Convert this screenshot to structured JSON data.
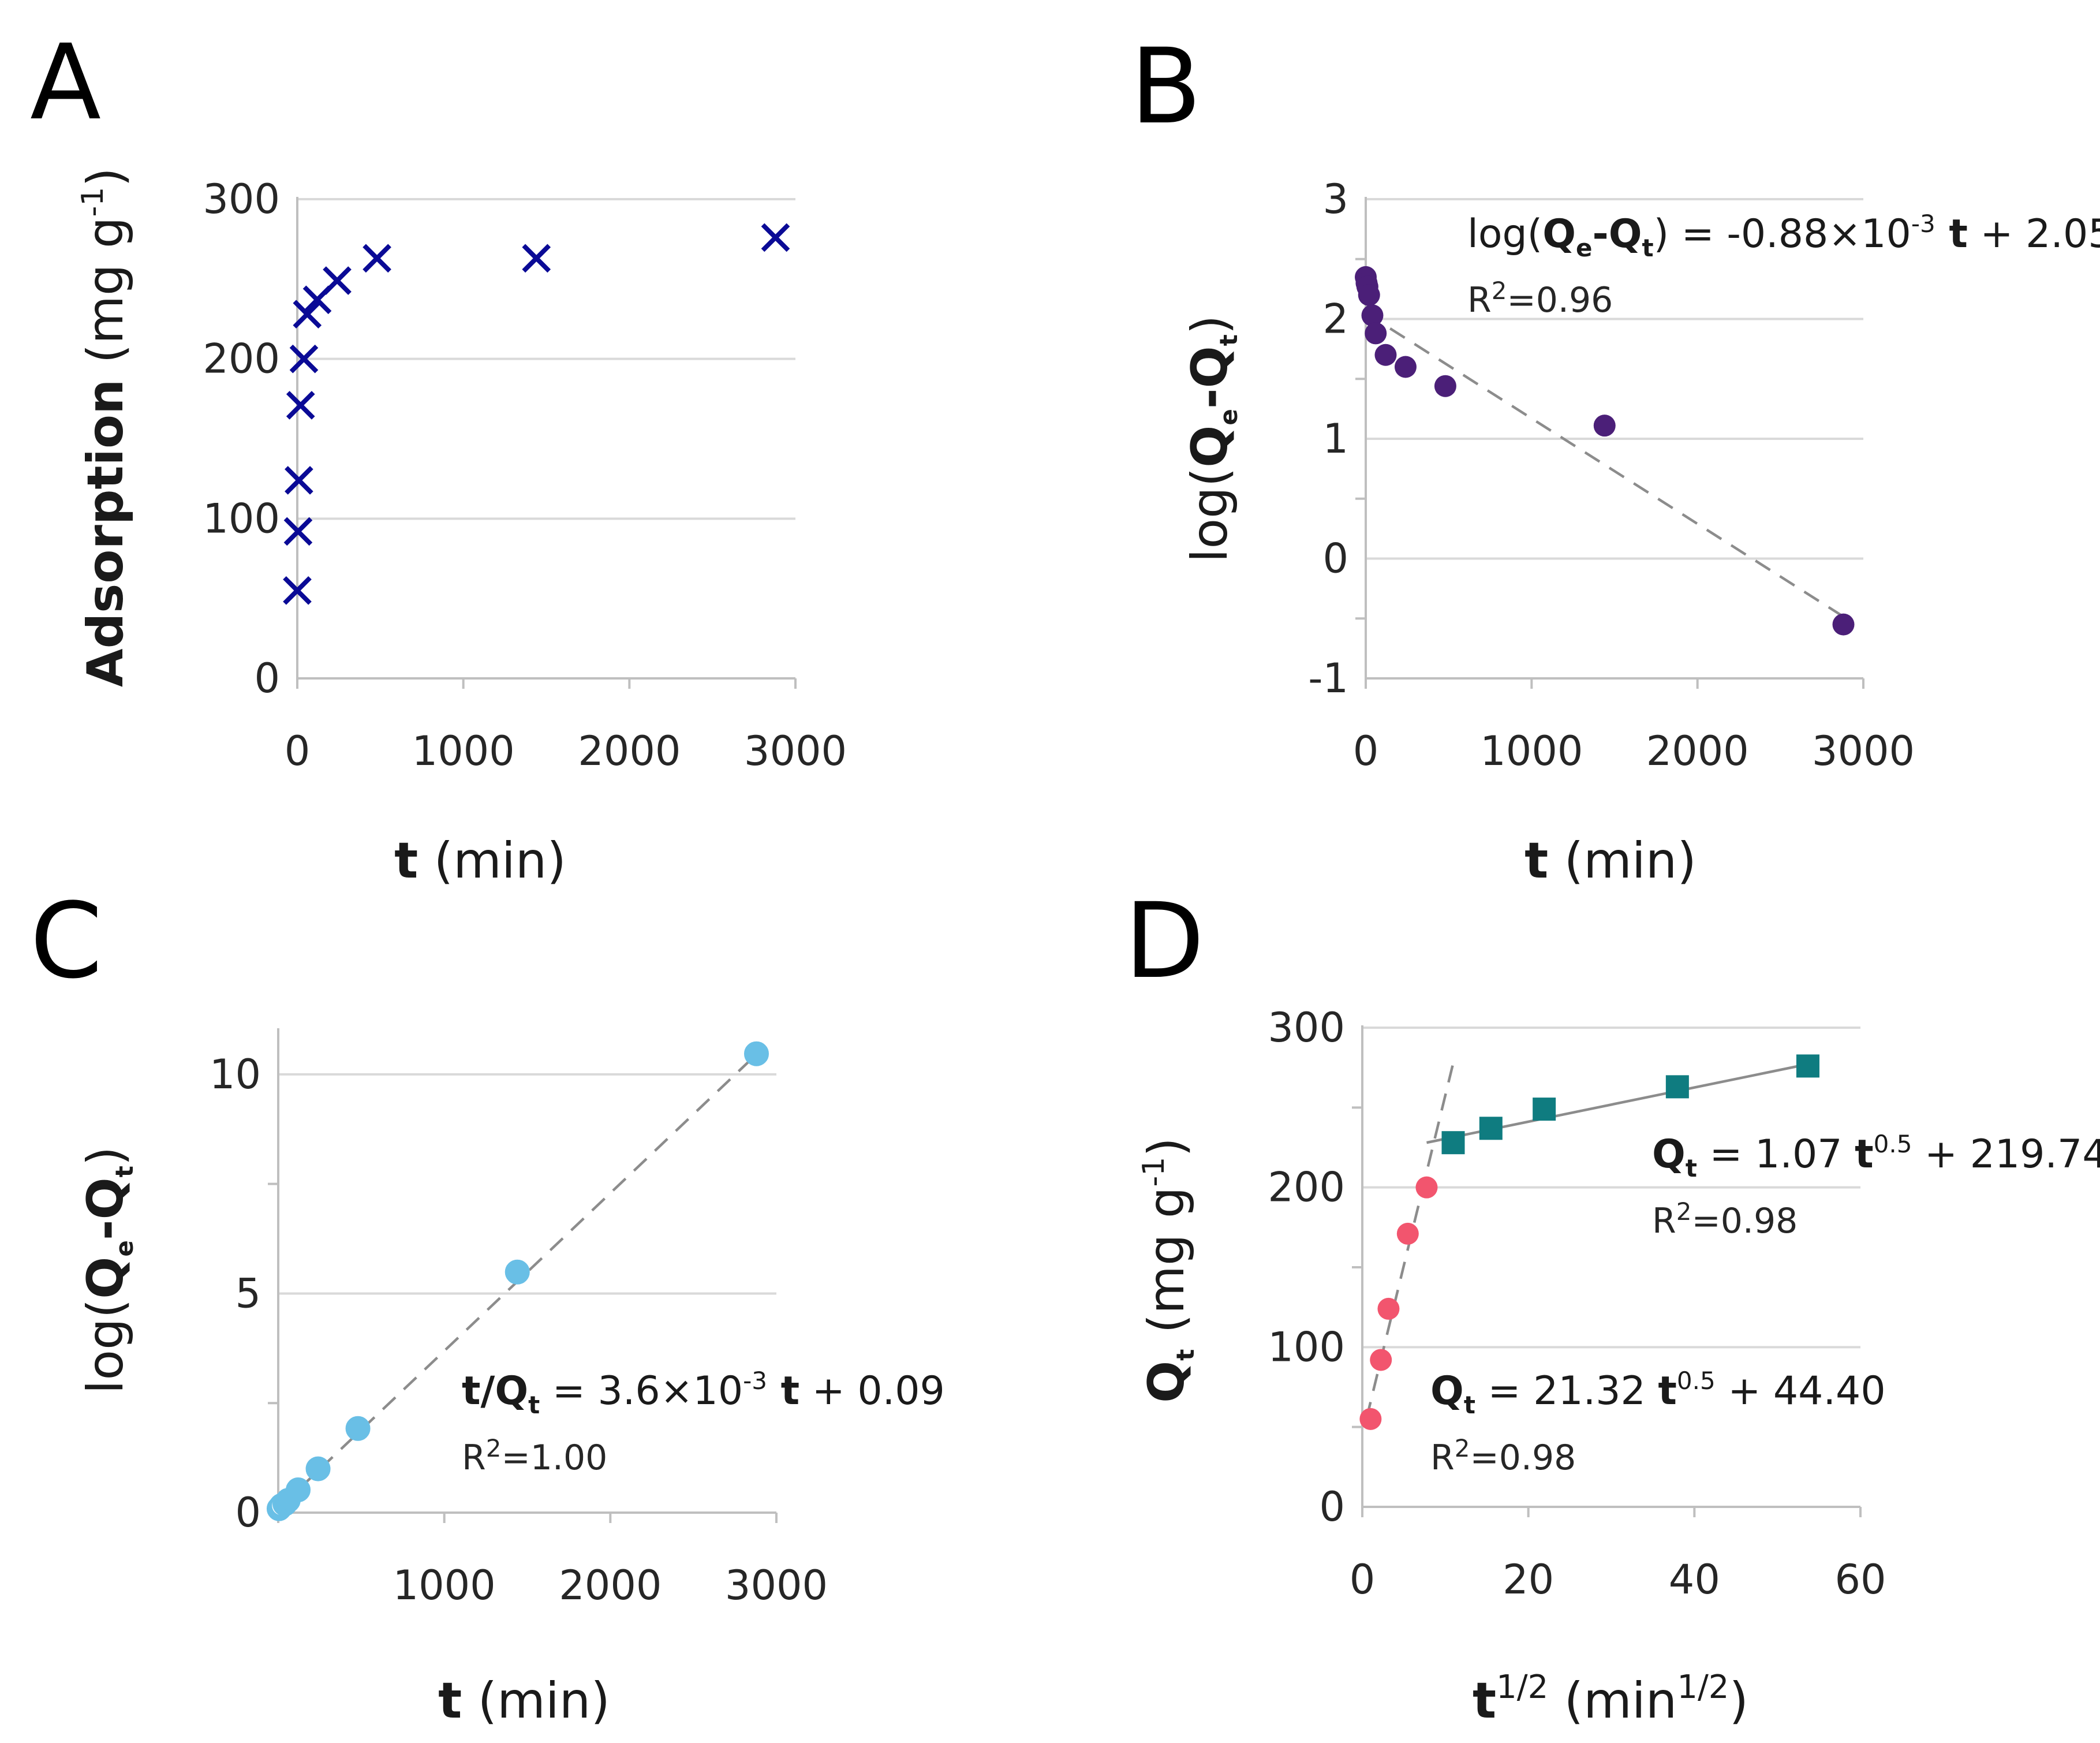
{
  "colors": {
    "A_marker": "#0a0a96",
    "B_marker": "#4b1f78",
    "C_marker": "#69bfe6",
    "D_circle": "#f2556e",
    "D_square": "#0f7c80",
    "grid": "#d9d9d9",
    "fit": "#8c8c8c"
  },
  "chart_data": [
    {
      "id": "A",
      "panel_label": "A",
      "type": "scatter",
      "marker": "x",
      "xlabel_bold": "t",
      "xlabel_rest": " (min)",
      "ylabel_bold": "Adsorption",
      "ylabel_rest": " (mg g",
      "ylabel_sup": "-1",
      "ylabel_end": ")",
      "xlim": [
        0,
        3000
      ],
      "ylim": [
        0,
        300
      ],
      "xticks": [
        0,
        1000,
        2000,
        3000
      ],
      "yticks": [
        0,
        100,
        200,
        300
      ],
      "x": [
        0,
        5,
        10,
        20,
        40,
        60,
        120,
        240,
        480,
        1440,
        2880
      ],
      "y": [
        55,
        92,
        124,
        171,
        200,
        228,
        237,
        249,
        263,
        263,
        276
      ]
    },
    {
      "id": "B",
      "panel_label": "B",
      "type": "scatter",
      "marker": "circle",
      "xlabel_bold": "t",
      "xlabel_rest": " (min)",
      "ylabel": "log(Qe-Qt)",
      "xlim": [
        0,
        3000
      ],
      "ylim": [
        -1,
        3
      ],
      "xticks": [
        0,
        1000,
        2000,
        3000
      ],
      "yticks": [
        -1,
        0,
        1,
        2,
        3
      ],
      "x": [
        0,
        5,
        10,
        20,
        40,
        60,
        120,
        240,
        480,
        1440,
        2880
      ],
      "y": [
        2.35,
        2.3,
        2.27,
        2.2,
        2.03,
        1.88,
        1.7,
        1.6,
        1.44,
        1.11,
        -0.55
      ],
      "fit": {
        "slope": -0.00088,
        "intercept": 2.05,
        "x_range": [
          0,
          2880
        ]
      },
      "equation": "log(Qe-Qt) = -0.88×10-3 t + 2.05",
      "r2": "R2=0.96"
    },
    {
      "id": "C",
      "panel_label": "C",
      "type": "scatter",
      "marker": "circle",
      "xlabel_bold": "t",
      "xlabel_rest": " (min)",
      "ylabel": "log(Qe-Qt)",
      "xlim": [
        0,
        3000
      ],
      "ylim": [
        0,
        11
      ],
      "xticks": [
        1000,
        2000,
        3000
      ],
      "yticks": [
        0,
        5,
        10
      ],
      "x": [
        5,
        10,
        20,
        40,
        60,
        120,
        240,
        480,
        1440,
        2880
      ],
      "y": [
        0.09,
        0.11,
        0.16,
        0.2,
        0.28,
        0.52,
        1.0,
        1.92,
        5.49,
        10.47
      ],
      "fit": {
        "slope": 0.0036,
        "intercept": 0.09,
        "x_range": [
          0,
          2880
        ]
      },
      "equation": "t/Qt = 3.6×10-3 t + 0.09",
      "r2": "R2=1.00"
    },
    {
      "id": "D",
      "panel_label": "D",
      "type": "scatter",
      "marker": "mixed",
      "xlabel_bold": "t",
      "xlabel_sup": "1/2",
      "xlabel_rest": " (min",
      "xlabel_sup2": "1/2",
      "xlabel_end": ")",
      "ylabel": "Qt (mg g-1)",
      "xlim": [
        0,
        60
      ],
      "ylim": [
        0,
        300
      ],
      "xticks": [
        0,
        20,
        40,
        60
      ],
      "yticks": [
        0,
        100,
        200,
        300
      ],
      "series": [
        {
          "name": "stage1",
          "marker": "circle",
          "x": [
            1,
            2.24,
            3.16,
            5.48,
            7.75
          ],
          "y": [
            55,
            92,
            124,
            171,
            200
          ],
          "fit": {
            "slope": 21.32,
            "intercept": 44.4,
            "x_range": [
              0.5,
              10.95
            ]
          },
          "equation": "Qt = 21.32 t0.5 + 44.40",
          "r2": "R2=0.98"
        },
        {
          "name": "stage2",
          "marker": "square",
          "x": [
            10.95,
            15.49,
            21.91,
            37.95,
            53.67
          ],
          "y": [
            228,
            237,
            249,
            263,
            276
          ],
          "fit": {
            "slope": 1.07,
            "intercept": 219.74,
            "x_range": [
              7.75,
              55
            ]
          },
          "equation": "Qt = 1.07 t0.5 + 219.74",
          "r2": "R2=0.98"
        }
      ]
    }
  ]
}
